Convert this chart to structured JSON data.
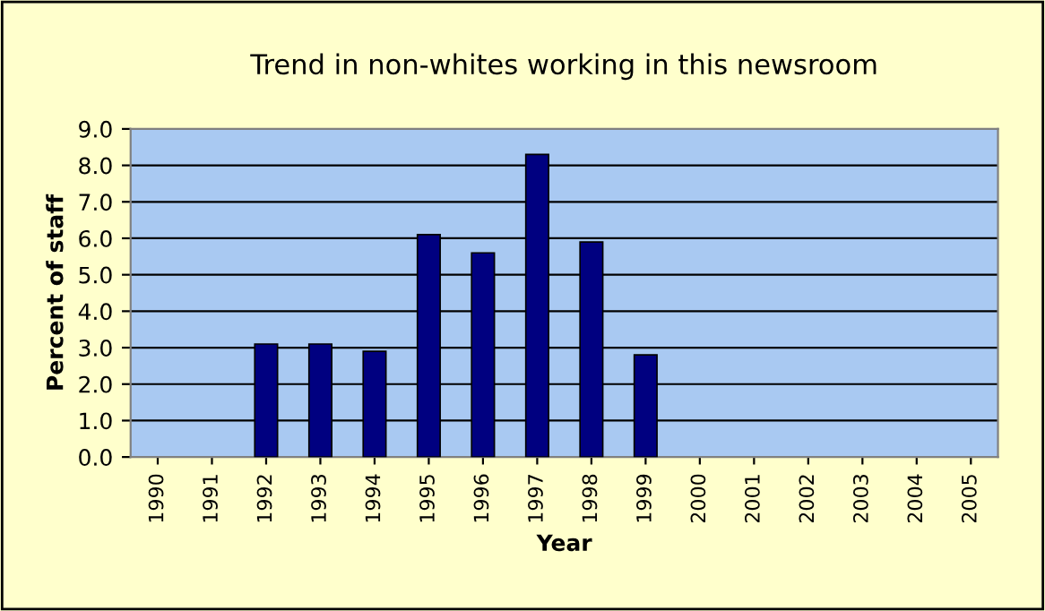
{
  "chart_data": {
    "type": "bar",
    "title": "Trend in non-whites working in this newsroom",
    "xlabel": "Year",
    "ylabel": "Percent of staff",
    "categories": [
      "1990",
      "1991",
      "1992",
      "1993",
      "1994",
      "1995",
      "1996",
      "1997",
      "1998",
      "1999",
      "2000",
      "2001",
      "2002",
      "2003",
      "2004",
      "2005"
    ],
    "values": [
      null,
      null,
      3.1,
      3.1,
      2.9,
      6.1,
      5.6,
      8.3,
      5.9,
      2.8,
      null,
      null,
      null,
      null,
      null,
      null
    ],
    "color": "#000080",
    "ylim": [
      0,
      9
    ],
    "yticks": [
      {
        "value": 0,
        "label": "0.0"
      },
      {
        "value": 1,
        "label": "1.0"
      },
      {
        "value": 2,
        "label": "2.0"
      },
      {
        "value": 3,
        "label": "3.0"
      },
      {
        "value": 4,
        "label": "4.0"
      },
      {
        "value": 5,
        "label": "5.0"
      },
      {
        "value": 6,
        "label": "6.0"
      },
      {
        "value": 7,
        "label": "7.0"
      },
      {
        "value": 8,
        "label": "8.0"
      },
      {
        "value": 9,
        "label": "9.0"
      }
    ],
    "grid": "y",
    "legend": false
  }
}
